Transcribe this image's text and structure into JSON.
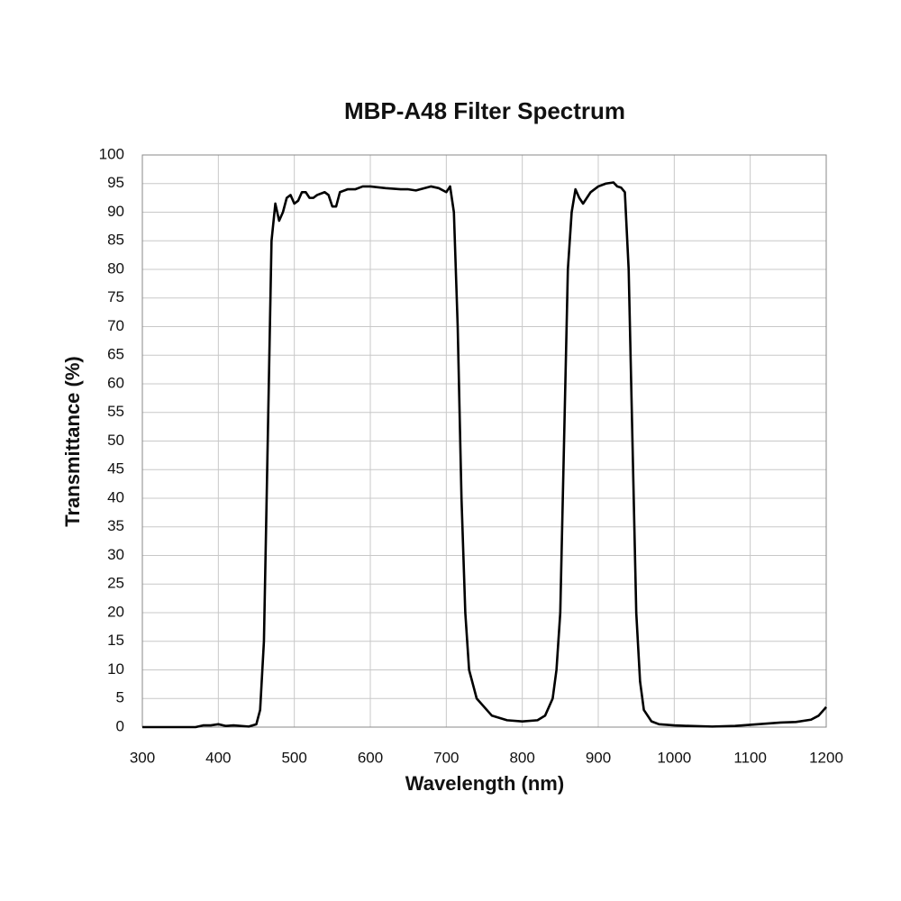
{
  "chart_data": {
    "type": "line",
    "title": "MBP-A48 Filter Spectrum",
    "x_label": "Wavelength (nm)",
    "y_label": "Transmittance (%)",
    "xlim": [
      300,
      1200
    ],
    "ylim": [
      0,
      100
    ],
    "xticks": [
      300,
      400,
      500,
      600,
      700,
      800,
      900,
      1000,
      1100,
      1200
    ],
    "yticks": [
      0,
      5,
      10,
      15,
      20,
      25,
      30,
      35,
      40,
      45,
      50,
      55,
      60,
      65,
      70,
      75,
      80,
      85,
      90,
      95,
      100
    ],
    "grid": true,
    "series": [
      {
        "color": "#000000",
        "x": [
          300,
          370,
          380,
          390,
          400,
          410,
          420,
          440,
          450,
          455,
          460,
          465,
          470,
          475,
          480,
          485,
          490,
          495,
          500,
          505,
          510,
          515,
          520,
          525,
          530,
          540,
          545,
          550,
          555,
          560,
          570,
          580,
          590,
          600,
          620,
          640,
          650,
          660,
          680,
          690,
          700,
          705,
          710,
          715,
          720,
          725,
          730,
          740,
          760,
          780,
          800,
          820,
          830,
          840,
          845,
          850,
          855,
          860,
          865,
          870,
          875,
          880,
          885,
          890,
          900,
          910,
          920,
          925,
          930,
          935,
          940,
          945,
          950,
          955,
          960,
          970,
          980,
          1000,
          1020,
          1050,
          1080,
          1100,
          1120,
          1140,
          1160,
          1180,
          1190,
          1200
        ],
        "values": [
          0,
          0,
          0.3,
          0.3,
          0.5,
          0.2,
          0.3,
          0.1,
          0.5,
          3,
          15,
          50,
          85,
          91.5,
          88.5,
          90,
          92.5,
          93,
          91.5,
          92,
          93.5,
          93.5,
          92.5,
          92.5,
          93,
          93.5,
          93,
          91,
          91,
          93.5,
          94,
          94,
          94.5,
          94.5,
          94.2,
          94,
          94,
          93.8,
          94.5,
          94.2,
          93.5,
          94.5,
          90,
          70,
          40,
          20,
          10,
          5,
          2,
          1.2,
          1,
          1.2,
          2,
          5,
          10,
          20,
          50,
          80,
          90,
          94,
          92.5,
          91.5,
          92.5,
          93.5,
          94.5,
          95,
          95.2,
          94.5,
          94.3,
          93.5,
          80,
          50,
          20,
          8,
          3,
          1,
          0.5,
          0.3,
          0.2,
          0.1,
          0.2,
          0.4,
          0.6,
          0.8,
          0.9,
          1.3,
          2,
          3.5
        ]
      }
    ]
  }
}
